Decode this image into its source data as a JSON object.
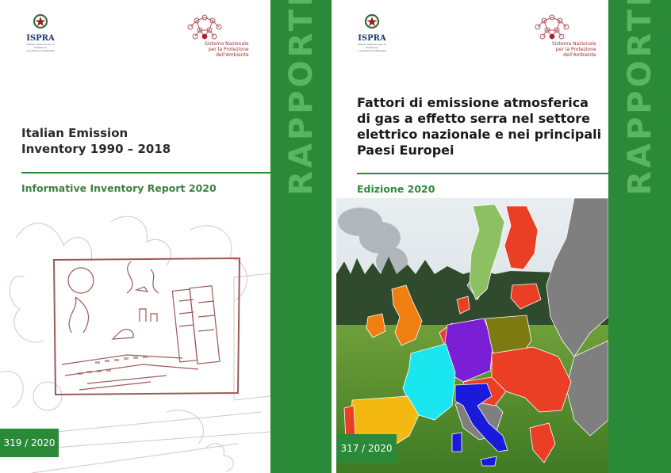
{
  "left_cover": {
    "logo": {
      "name": "ISPRA",
      "subtitle_line1": "Istituto Superiore per la Protezione",
      "subtitle_line2": "e la Ricerca Ambientale"
    },
    "network_logo": {
      "line1": "Sistema Nazionale",
      "line2": "per la Protezione",
      "line3": "dell'Ambiente"
    },
    "title_line1": "Italian Emission",
    "title_line2": "Inventory 1990 – 2018",
    "subtitle": "Informative Inventory Report 2020",
    "series_label": "RAPPORTI",
    "number": "319 / 2020",
    "colors": {
      "band": "#2b8a37",
      "band_text": "#5bb560",
      "sketch": "#9b5a5a"
    }
  },
  "right_cover": {
    "logo": {
      "name": "ISPRA",
      "subtitle_line1": "Istituto Superiore per la Protezione",
      "subtitle_line2": "e la Ricerca Ambientale"
    },
    "network_logo": {
      "line1": "Sistema Nazionale",
      "line2": "per la Protezione",
      "line3": "dell'Ambiente"
    },
    "title_line1": "Fattori di emissione atmosferica",
    "title_line2": "di gas a effetto serra nel settore",
    "title_line3": "elettrico nazionale e nei principali",
    "title_line4": "Paesi Europei",
    "subtitle": "Edizione 2020",
    "series_label": "RAPPORTI",
    "number": "317 / 2020",
    "colors": {
      "band": "#2b8a37",
      "band_text": "#5bb560",
      "italy": "#1a1adb",
      "germany": "#7a1fd6",
      "france": "#19e6ee",
      "poland": "#7c7a10",
      "uk": "#f07f12",
      "spain": "#f3b812",
      "sweden": "#8cc063",
      "highlight": "#ea3f24",
      "other": "#7f7f7f"
    }
  }
}
